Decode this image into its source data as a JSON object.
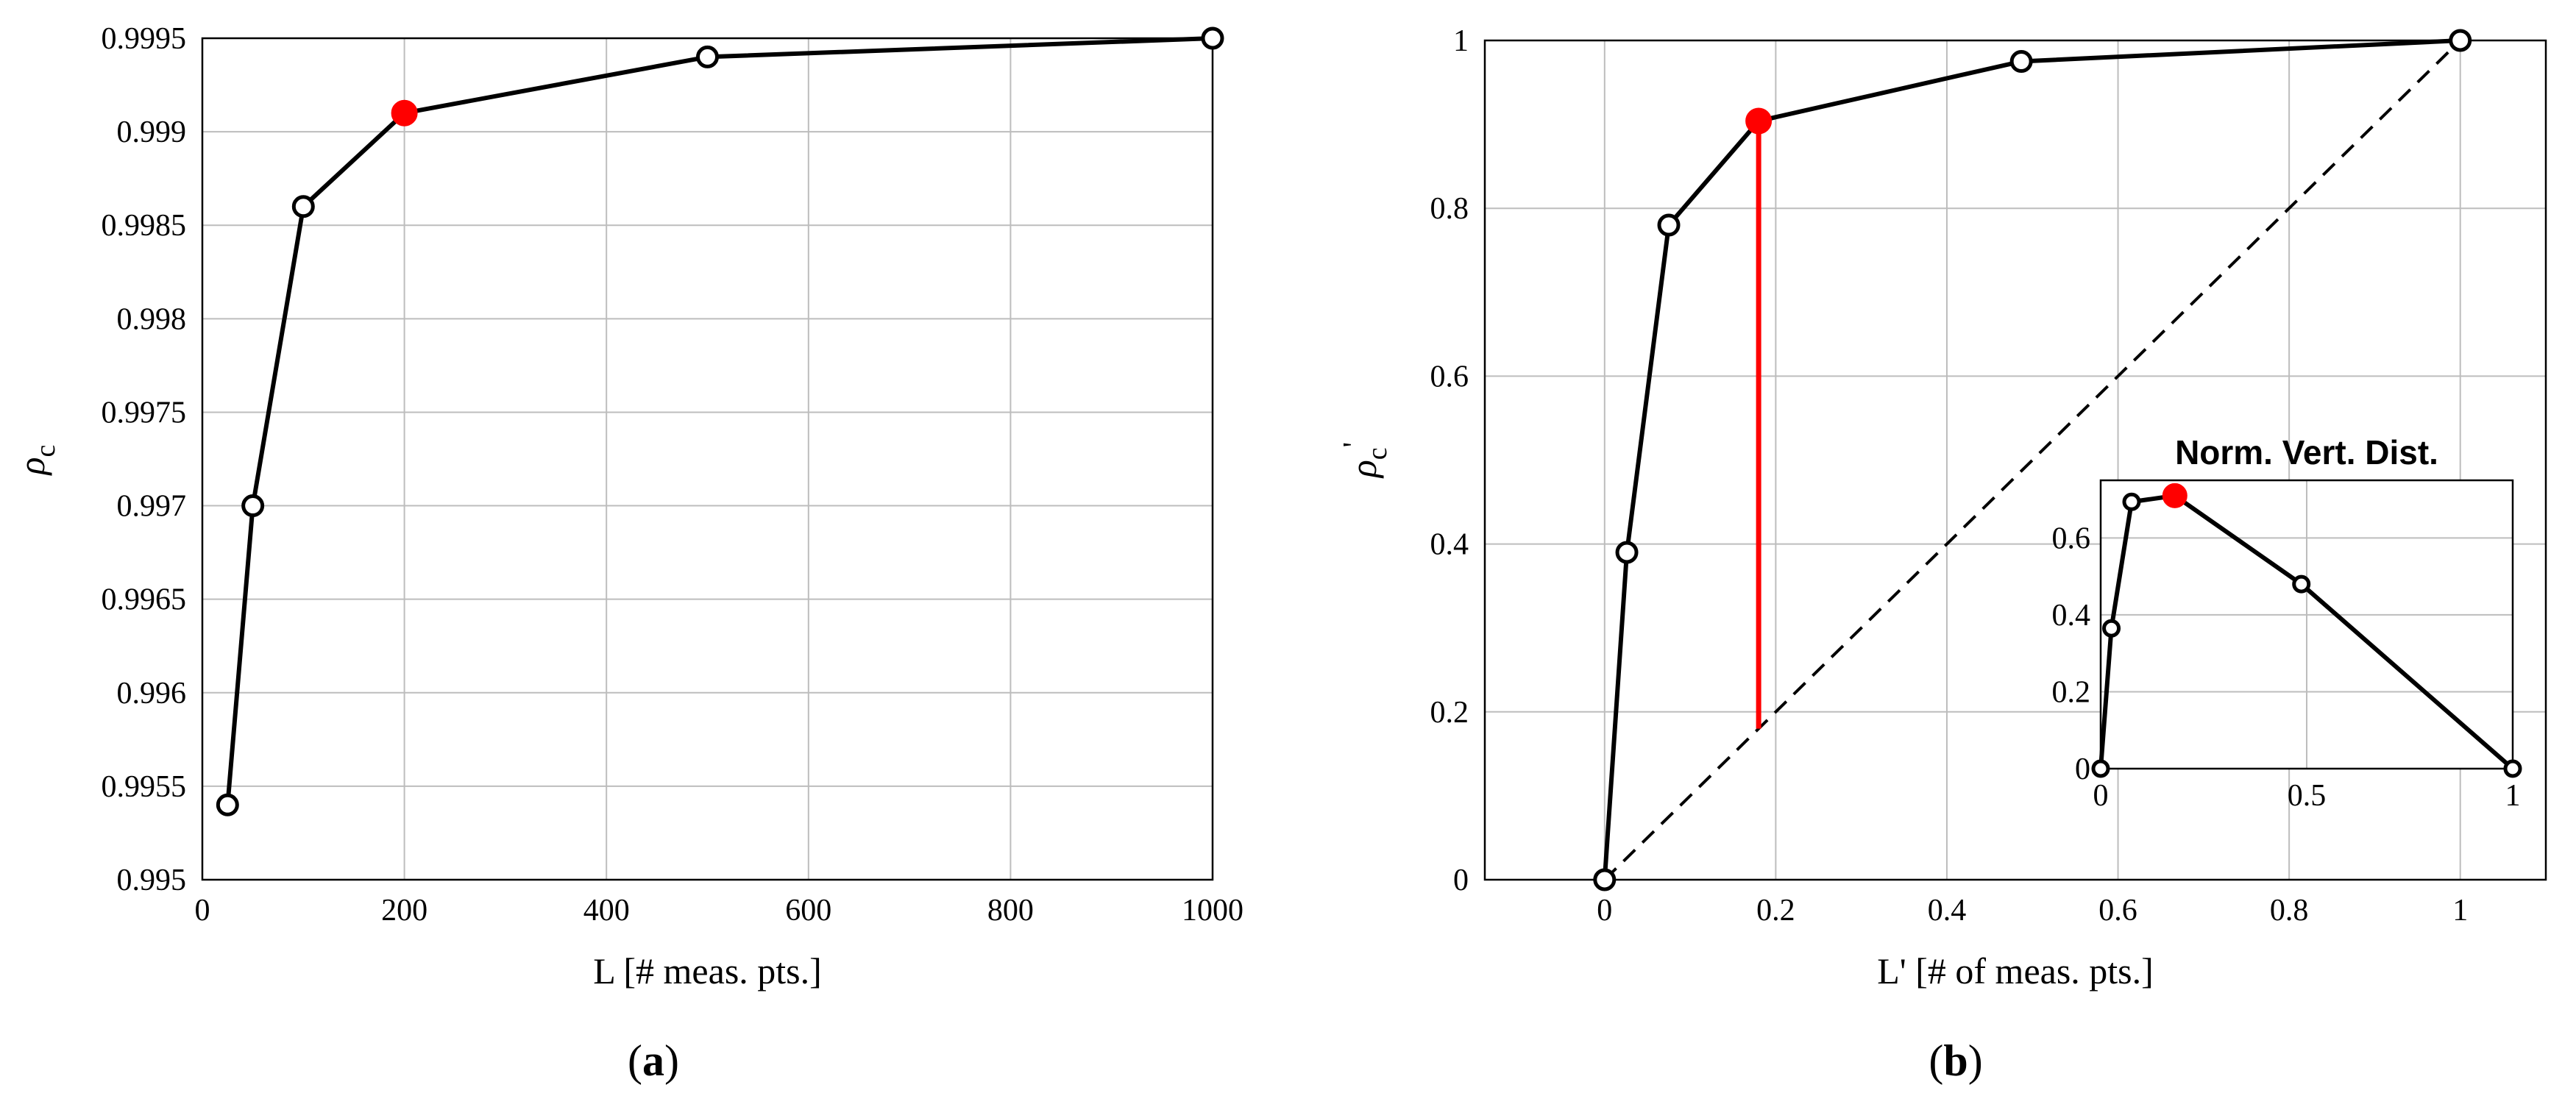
{
  "chart_data": [
    {
      "id": "a",
      "type": "line",
      "caption_letter": "a",
      "title": "",
      "xlabel": "L [# meas. pts.]",
      "ylabel_symbol": "ρ",
      "ylabel_subscript": "c",
      "xlim": [
        0,
        1000
      ],
      "ylim": [
        0.995,
        0.9995
      ],
      "x_ticks": [
        0,
        200,
        400,
        600,
        800,
        1000
      ],
      "x_tick_labels": [
        "0",
        "200",
        "400",
        "600",
        "800",
        "1000"
      ],
      "y_ticks": [
        0.995,
        0.9955,
        0.996,
        0.9965,
        0.997,
        0.9975,
        0.998,
        0.9985,
        0.999,
        0.9995
      ],
      "y_tick_labels": [
        "0.995",
        "0.9955",
        "0.996",
        "0.9965",
        "0.997",
        "0.9975",
        "0.998",
        "0.9985",
        "0.999",
        "0.9995"
      ],
      "grid": true,
      "series": [
        {
          "x": [
            25,
            50,
            100,
            200,
            500,
            1000
          ],
          "y": [
            0.9954,
            0.997,
            0.9986,
            0.9991,
            0.9994,
            0.9995
          ],
          "highlight_index": 3,
          "highlight_color": "#ff0000"
        }
      ]
    },
    {
      "id": "b",
      "type": "line",
      "caption_letter": "b",
      "title": "",
      "xlabel": "L' [# of meas. pts.]",
      "ylabel_symbol": "ρ",
      "ylabel_subscript": "c",
      "ylabel_prime": "'",
      "xlim": [
        -0.14,
        1.1
      ],
      "ylim": [
        0,
        1
      ],
      "x_ticks": [
        0,
        0.2,
        0.4,
        0.6,
        0.8,
        1
      ],
      "x_tick_labels": [
        "0",
        "0.2",
        "0.4",
        "0.6",
        "0.8",
        "1"
      ],
      "y_ticks": [
        0,
        0.2,
        0.4,
        0.6,
        0.8,
        1
      ],
      "y_tick_labels": [
        "0",
        "0.2",
        "0.4",
        "0.6",
        "0.8",
        "1"
      ],
      "grid": true,
      "series": [
        {
          "x": [
            0,
            0.026,
            0.075,
            0.18,
            0.487,
            1
          ],
          "y": [
            0,
            0.39,
            0.78,
            0.904,
            0.975,
            1
          ],
          "highlight_index": 3,
          "highlight_color": "#ff0000"
        }
      ],
      "reference_line": {
        "from": [
          0,
          0
        ],
        "to": [
          1,
          1
        ],
        "style": "dashed"
      },
      "vertical_segment": {
        "x": 0.18,
        "y_from": 0.18,
        "y_to": 0.904,
        "color": "#ff0000"
      },
      "inset": {
        "title": "Norm. Vert. Dist.",
        "xlim": [
          0,
          1
        ],
        "ylim": [
          0,
          0.75
        ],
        "x_ticks": [
          0,
          0.5,
          1
        ],
        "x_tick_labels": [
          "0",
          "0.5",
          "1"
        ],
        "y_ticks": [
          0,
          0.2,
          0.4,
          0.6
        ],
        "y_tick_labels": [
          "0",
          "0.2",
          "0.4",
          "0.6"
        ],
        "grid": true,
        "series": [
          {
            "x": [
              0,
              0.026,
              0.075,
              0.18,
              0.487,
              1
            ],
            "y": [
              0,
              0.365,
              0.694,
              0.71,
              0.48,
              0
            ],
            "highlight_index": 3,
            "highlight_color": "#ff0000"
          }
        ]
      }
    }
  ]
}
